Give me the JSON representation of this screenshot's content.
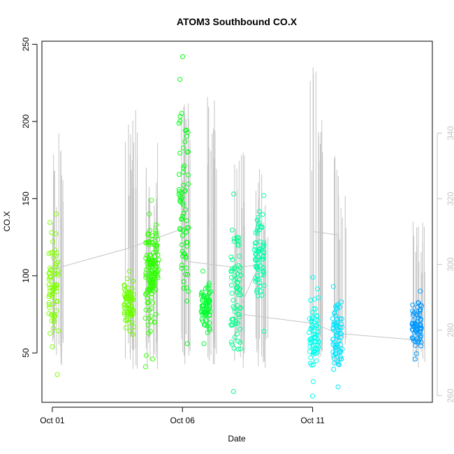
{
  "chart_data": {
    "type": "scatter",
    "title": "ATOM3 Southbound CO.X",
    "xlabel": "Date",
    "ylabel": "CO.X",
    "x_ticks": [
      "Oct 01",
      "Oct 06",
      "Oct 11"
    ],
    "x_tick_days": [
      1,
      6,
      11
    ],
    "xlim_days": [
      0.6,
      15.6
    ],
    "ylim": [
      18,
      252
    ],
    "y_ticks": [
      50,
      100,
      150,
      200,
      250
    ],
    "y2lim": [
      258,
      368
    ],
    "y2_ticks": [
      260,
      280,
      300,
      320,
      340
    ],
    "y2_color": "#c4c4c4",
    "grid": false,
    "clusters": [
      {
        "day": 1.05,
        "ymin": 36,
        "ymax": 140,
        "color": "#7fff00"
      },
      {
        "day": 3.95,
        "ymin": 62,
        "ymax": 103,
        "color": "#6aff00"
      },
      {
        "day": 4.75,
        "ymin": 41,
        "ymax": 149,
        "color": "#33ff00"
      },
      {
        "day": 4.9,
        "ymin": 75,
        "ymax": 140,
        "color": "#2bff00"
      },
      {
        "day": 6.05,
        "ymin": 56,
        "ymax": 242,
        "color": "#00ff10"
      },
      {
        "day": 6.9,
        "ymin": 56,
        "ymax": 103,
        "color": "#00ff2e"
      },
      {
        "day": 8.05,
        "ymin": 25,
        "ymax": 153,
        "color": "#00ff8c"
      },
      {
        "day": 8.95,
        "ymin": 64,
        "ymax": 152,
        "color": "#00ffa8"
      },
      {
        "day": 11.05,
        "ymin": 22,
        "ymax": 99,
        "color": "#00ffee"
      },
      {
        "day": 11.95,
        "ymin": 28,
        "ymax": 93,
        "color": "#00e5ff"
      },
      {
        "day": 15.0,
        "ymin": 46,
        "ymax": 90,
        "color": "#0099ff"
      }
    ],
    "secondary_series": {
      "name": "",
      "color": "#c4c4c4",
      "spikes": [
        {
          "day": 1.08,
          "y2": 340
        },
        {
          "day": 3.95,
          "y2": 347
        },
        {
          "day": 4.75,
          "y2": 337
        },
        {
          "day": 6.05,
          "y2": 349
        },
        {
          "day": 7.0,
          "y2": 351
        },
        {
          "day": 8.05,
          "y2": 334
        },
        {
          "day": 8.95,
          "y2": 329
        },
        {
          "day": 11.05,
          "y2": 360
        },
        {
          "day": 11.95,
          "y2": 333
        },
        {
          "day": 15.0,
          "y2": 313
        }
      ],
      "baseline": [
        [
          1.0,
          298.5
        ],
        [
          3.95,
          305
        ],
        [
          6.05,
          311
        ],
        [
          6.1,
          301
        ],
        [
          8.1,
          299
        ],
        [
          8.95,
          300
        ],
        [
          8.1,
          285
        ],
        [
          11.05,
          282
        ],
        [
          11.95,
          279
        ],
        [
          15.0,
          277
        ]
      ],
      "steps": [
        [
          3.95,
          305
        ],
        [
          3.95,
          321
        ],
        [
          4.75,
          320
        ],
        [
          4.75,
          307
        ],
        [
          6.05,
          311
        ],
        [
          6.05,
          348
        ],
        [
          7.0,
          348
        ],
        [
          7.0,
          311
        ],
        [
          11.05,
          310
        ],
        [
          11.95,
          309
        ]
      ]
    }
  }
}
